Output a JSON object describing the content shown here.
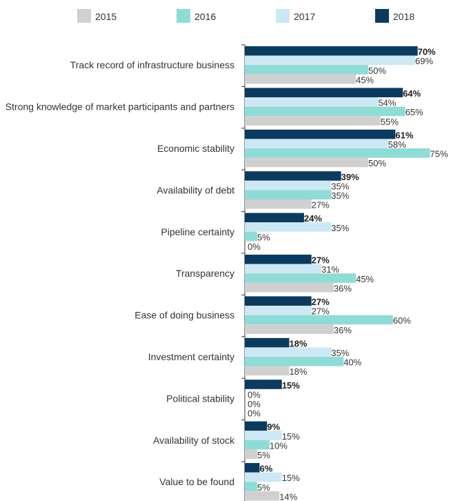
{
  "chart_data": {
    "type": "bar",
    "orientation": "horizontal",
    "categories": [
      "Track record of infrastructure business",
      "Strong knowledge of market participants and partners",
      "Economic stability",
      "Availability of debt",
      "Pipeline certainty",
      "Transparency",
      "Ease of doing business",
      "Investment certainty",
      "Political stability",
      "Availability of stock",
      "Value to be found"
    ],
    "series": [
      {
        "name": "2018",
        "color": "#0b3a5e",
        "values": [
          70,
          64,
          61,
          39,
          24,
          27,
          27,
          18,
          15,
          9,
          6
        ],
        "labels_bold": true
      },
      {
        "name": "2017",
        "color": "#cde8f5",
        "values": [
          69,
          54,
          58,
          35,
          35,
          31,
          27,
          35,
          0,
          15,
          15
        ]
      },
      {
        "name": "2016",
        "color": "#8fdcd6",
        "values": [
          50,
          65,
          75,
          35,
          5,
          45,
          60,
          40,
          0,
          10,
          5
        ]
      },
      {
        "name": "2015",
        "color": "#d0d0d0",
        "values": [
          45,
          55,
          50,
          27,
          0,
          36,
          36,
          18,
          0,
          5,
          14
        ]
      }
    ],
    "legend": {
      "position": "top",
      "order": [
        "2015",
        "2016",
        "2017",
        "2018"
      ]
    },
    "value_suffix": "%",
    "xlim": [
      0,
      100
    ],
    "grid": false
  }
}
